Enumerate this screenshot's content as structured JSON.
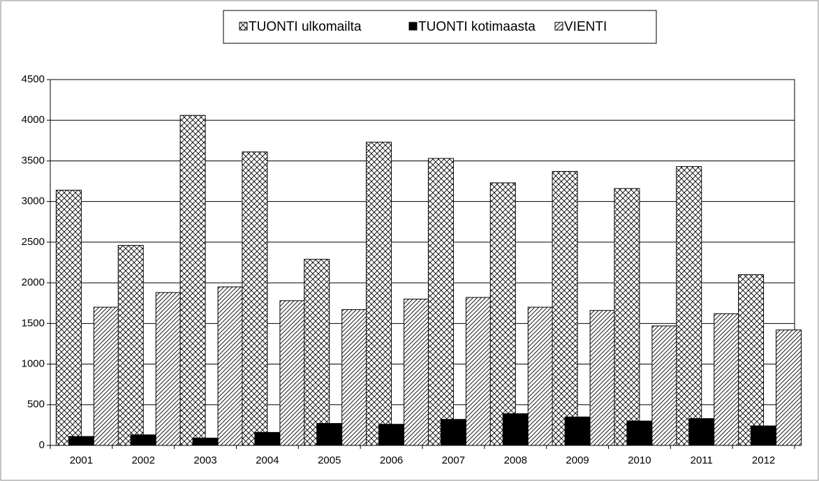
{
  "chart_data": {
    "type": "bar",
    "categories": [
      "2001",
      "2002",
      "2003",
      "2004",
      "2005",
      "2006",
      "2007",
      "2008",
      "2009",
      "2010",
      "2011",
      "2012"
    ],
    "series": [
      {
        "name": "TUONTI ulkomailta",
        "color": "#000000",
        "pattern": "crosshatch",
        "values": [
          3140,
          2460,
          4060,
          3610,
          2290,
          3730,
          3530,
          3230,
          3370,
          3160,
          3430,
          2100
        ]
      },
      {
        "name": "TUONTI kotimaasta",
        "color": "#000000",
        "pattern": "solid",
        "values": [
          110,
          130,
          90,
          160,
          270,
          260,
          320,
          390,
          350,
          300,
          330,
          240
        ]
      },
      {
        "name": "VIENTI",
        "color": "#000000",
        "pattern": "diagonal",
        "values": [
          1700,
          1880,
          1950,
          1780,
          1670,
          1800,
          1820,
          1700,
          1660,
          1470,
          1620,
          1420
        ]
      }
    ],
    "ylim": [
      0,
      4500
    ],
    "yticks": [
      0,
      500,
      1000,
      1500,
      2000,
      2500,
      3000,
      3500,
      4000,
      4500
    ],
    "grid": true,
    "legend": "top"
  }
}
